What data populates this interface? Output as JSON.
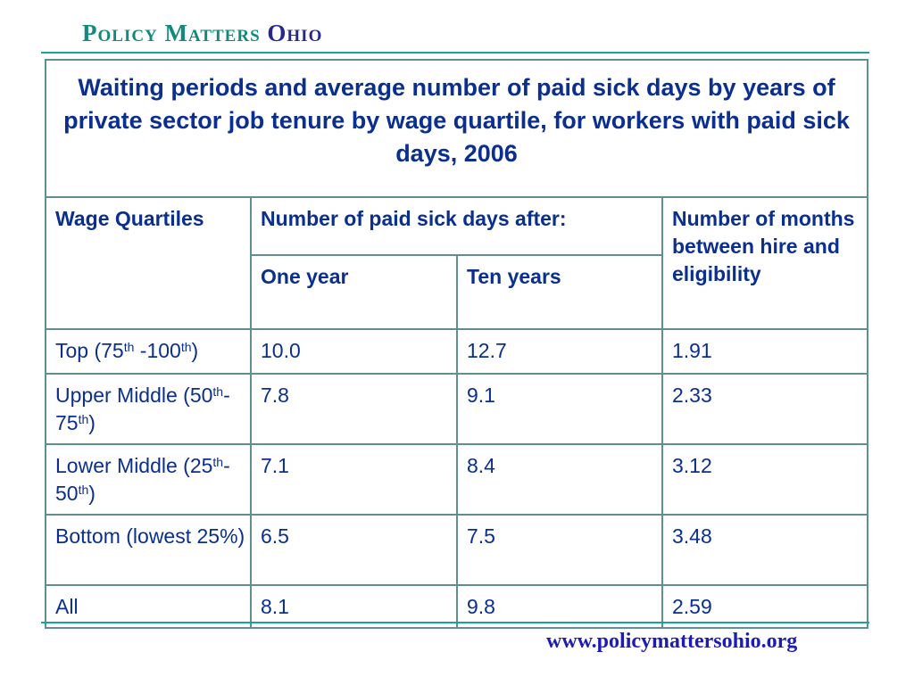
{
  "header": {
    "brand_word1": "Policy Matters",
    "brand_word2": "Ohio"
  },
  "table": {
    "title": "Waiting periods and average number of paid sick days by years of private sector job tenure by wage quartile, for workers with paid sick days, 2006",
    "col_wage": "Wage Quartiles",
    "col_sick_days": "Number of paid sick days after:",
    "col_one_year": "One year",
    "col_ten_years": "Ten years",
    "col_months": "Number of months between hire and eligibility",
    "rows": [
      {
        "quartile": "Top (75th -100th)",
        "one_year": "10.0",
        "ten_years": "12.7",
        "months": "1.91"
      },
      {
        "quartile": "Upper Middle (50th-75th)",
        "one_year": "7.8",
        "ten_years": "9.1",
        "months": "2.33"
      },
      {
        "quartile": "Lower Middle (25th-50th)",
        "one_year": "7.1",
        "ten_years": "8.4",
        "months": "3.12"
      },
      {
        "quartile": "Bottom (lowest 25%)",
        "one_year": "6.5",
        "ten_years": "7.5",
        "months": "3.48"
      },
      {
        "quartile": "All",
        "one_year": "8.1",
        "ten_years": "9.8",
        "months": "2.59"
      }
    ]
  },
  "footer": {
    "url": "www.policymattersohio.org"
  },
  "colors": {
    "brand_teal": "#0f8a7c",
    "brand_navy": "#27288f",
    "rule": "#1aa39a",
    "grid": "#5f8f8e",
    "text": "#0a2f8e",
    "url": "#1d1db5"
  }
}
